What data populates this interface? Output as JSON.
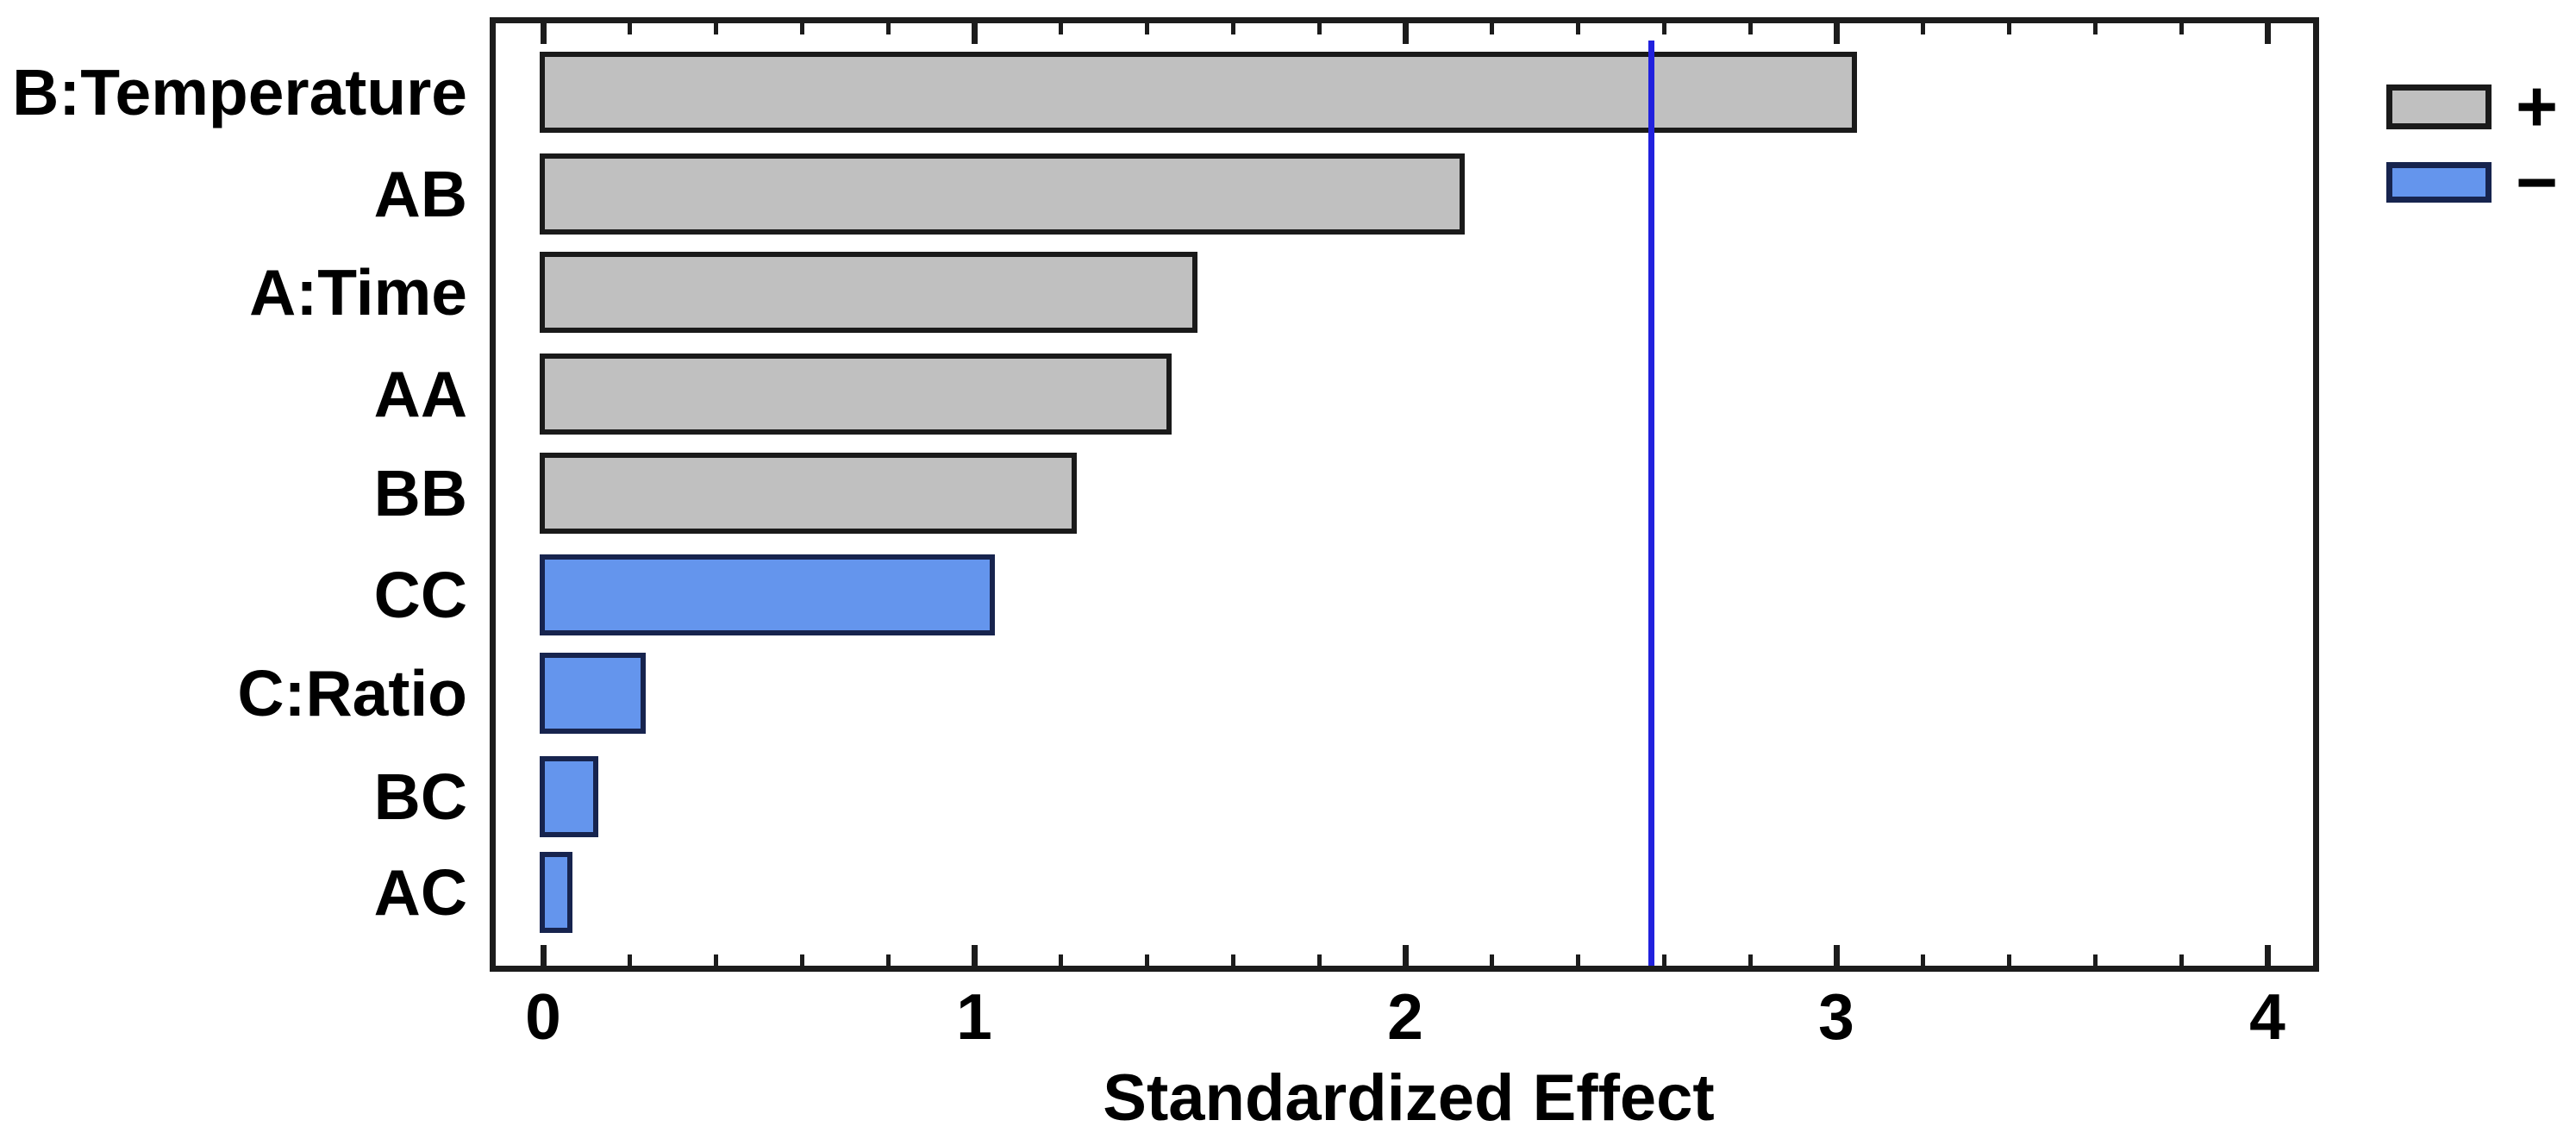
{
  "chart_data": {
    "type": "bar",
    "orientation": "horizontal",
    "title": "",
    "xlabel": "Standardized Effect",
    "ylabel": "",
    "xlim": [
      0,
      4
    ],
    "x_major_ticks": [
      0,
      1,
      2,
      3,
      4
    ],
    "x_minor_tick_step": 0.2,
    "grid": false,
    "categories": [
      "B:Temperature",
      "AB",
      "A:Time",
      "AA",
      "BB",
      "CC",
      "C:Ratio",
      "BC",
      "AC"
    ],
    "values": [
      3.04,
      2.13,
      1.51,
      1.45,
      1.23,
      1.04,
      0.23,
      0.12,
      0.06
    ],
    "signs": [
      "+",
      "+",
      "+",
      "+",
      "+",
      "-",
      "-",
      "-",
      "-"
    ],
    "reference_line_x": 2.57,
    "legend": {
      "position": "top-right",
      "entries": [
        {
          "label": "+",
          "meaning": "positive effect",
          "color": "#c0c0c0"
        },
        {
          "label": "−",
          "meaning": "negative effect",
          "color": "#6495ed"
        }
      ]
    },
    "colors": {
      "positive_fill": "#c0c0c0",
      "negative_fill": "#6495ed",
      "positive_border": "#1a1a1a",
      "negative_border": "#17244e",
      "reference_line": "#2121de",
      "frame": "#1c1c1c",
      "text": "#000000",
      "background": "#ffffff"
    }
  }
}
